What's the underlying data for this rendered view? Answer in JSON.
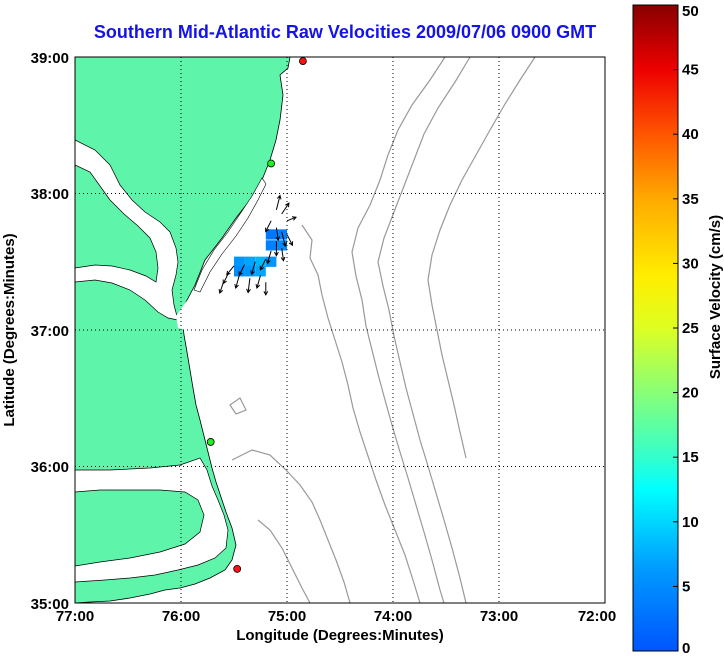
{
  "title": "Southern Mid-Atlantic Raw Velocities 2009/07/06 0900 GMT",
  "map": {
    "xlabel": "Longitude (Degrees:Minutes)",
    "ylabel": "Latitude (Degrees:Minutes)",
    "x_ticks": [
      "77:00",
      "76:00",
      "75:00",
      "74:00",
      "73:00",
      "72:00"
    ],
    "y_ticks": [
      "39:00",
      "38:00",
      "37:00",
      "36:00",
      "35:00"
    ],
    "lon_range": [
      -77,
      -72
    ],
    "lat_range": [
      35,
      39
    ],
    "grid": "dotted",
    "colors": {
      "land": "#5ef5aa",
      "water": "#ffffff",
      "bathymetry": "#999999",
      "station_active": "#22ee22",
      "station_inactive": "#ff1111"
    },
    "stations": [
      {
        "lon": -74.85,
        "lat": 38.97,
        "status": "inactive"
      },
      {
        "lon": -75.15,
        "lat": 38.22,
        "status": "active"
      },
      {
        "lon": -75.72,
        "lat": 36.18,
        "status": "active"
      },
      {
        "lon": -75.47,
        "lat": 35.25,
        "status": "inactive"
      }
    ],
    "velocity_cells": [
      {
        "lon": -75.45,
        "lat": 37.5,
        "speed": 6
      },
      {
        "lon": -75.35,
        "lat": 37.5,
        "speed": 7
      },
      {
        "lon": -75.25,
        "lat": 37.5,
        "speed": 8
      },
      {
        "lon": -75.15,
        "lat": 37.5,
        "speed": 6
      },
      {
        "lon": -75.45,
        "lat": 37.43,
        "speed": 5
      },
      {
        "lon": -75.35,
        "lat": 37.43,
        "speed": 6
      },
      {
        "lon": -75.25,
        "lat": 37.43,
        "speed": 7
      },
      {
        "lon": -75.15,
        "lat": 37.62,
        "speed": 4
      },
      {
        "lon": -75.05,
        "lat": 37.62,
        "speed": 5
      },
      {
        "lon": -75.15,
        "lat": 37.7,
        "speed": 3
      },
      {
        "lon": -75.05,
        "lat": 37.7,
        "speed": 4
      }
    ],
    "vectors": [
      {
        "lon": -75.1,
        "lat": 37.88,
        "u": 0.2,
        "v": 0.8
      },
      {
        "lon": -75.05,
        "lat": 37.85,
        "u": 0.4,
        "v": 0.6
      },
      {
        "lon": -75.0,
        "lat": 37.8,
        "u": 0.5,
        "v": 0.2
      },
      {
        "lon": -75.15,
        "lat": 37.8,
        "u": -0.3,
        "v": -0.6
      },
      {
        "lon": -75.1,
        "lat": 37.75,
        "u": 0.1,
        "v": -0.7
      },
      {
        "lon": -75.05,
        "lat": 37.72,
        "u": 0.2,
        "v": -0.8
      },
      {
        "lon": -75.0,
        "lat": 37.7,
        "u": 0.3,
        "v": -0.6
      },
      {
        "lon": -75.1,
        "lat": 37.65,
        "u": 0.0,
        "v": -0.8
      },
      {
        "lon": -75.05,
        "lat": 37.6,
        "u": 0.1,
        "v": -0.7
      },
      {
        "lon": -75.15,
        "lat": 37.58,
        "u": -0.2,
        "v": -0.7
      },
      {
        "lon": -75.2,
        "lat": 37.52,
        "u": -0.3,
        "v": -0.6
      },
      {
        "lon": -75.3,
        "lat": 37.5,
        "u": -0.2,
        "v": -0.7
      },
      {
        "lon": -75.4,
        "lat": 37.48,
        "u": -0.3,
        "v": -0.6
      },
      {
        "lon": -75.5,
        "lat": 37.47,
        "u": -0.4,
        "v": -0.5
      },
      {
        "lon": -75.55,
        "lat": 37.42,
        "u": -0.3,
        "v": -0.6
      },
      {
        "lon": -75.45,
        "lat": 37.4,
        "u": -0.2,
        "v": -0.7
      },
      {
        "lon": -75.35,
        "lat": 37.38,
        "u": -0.1,
        "v": -0.8
      },
      {
        "lon": -75.25,
        "lat": 37.4,
        "u": -0.2,
        "v": -0.7
      },
      {
        "lon": -75.2,
        "lat": 37.35,
        "u": 0.0,
        "v": -0.7
      },
      {
        "lon": -75.6,
        "lat": 37.35,
        "u": -0.2,
        "v": -0.6
      }
    ]
  },
  "colorbar": {
    "label": "Surface Velocity (cm/s)",
    "ticks": [
      0,
      5,
      10,
      15,
      20,
      25,
      30,
      35,
      40,
      45,
      50
    ],
    "range": [
      0,
      50
    ]
  },
  "chart_data": {
    "type": "map",
    "title": "Southern Mid-Atlantic Raw Velocities 2009/07/06 0900 GMT",
    "xlabel": "Longitude (Degrees:Minutes)",
    "ylabel": "Latitude (Degrees:Minutes)",
    "x_range_deg": [
      -77,
      -72
    ],
    "y_range_deg": [
      35,
      39
    ],
    "colorbar_label": "Surface Velocity (cm/s)",
    "colorbar_range": [
      0,
      50
    ]
  }
}
